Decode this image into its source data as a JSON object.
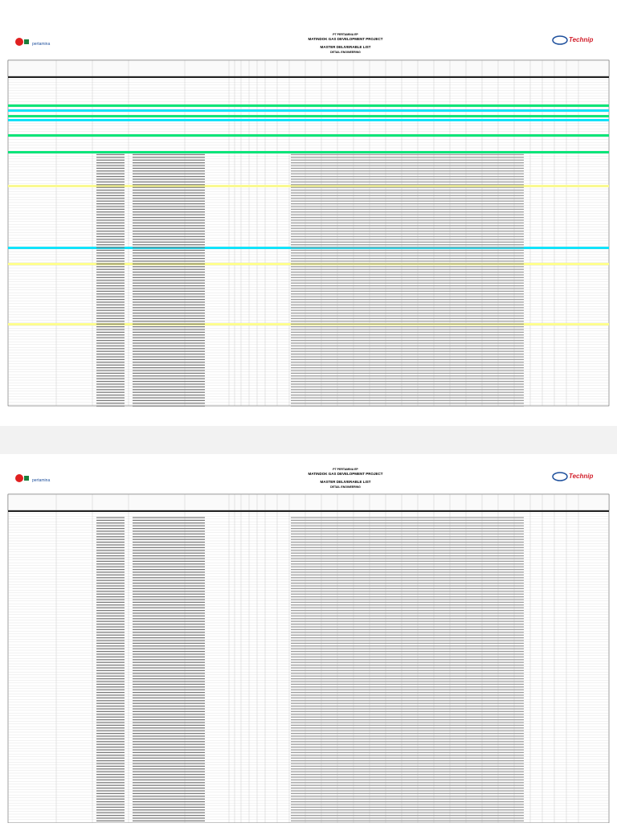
{
  "pages": [
    {
      "header": {
        "title_lines": [
          "PT PERTAMINA EP",
          "MATINDOK GAS DEVELOPMENT PROJECT",
          "MASTER DELIVERABLE LIST",
          "DETAIL ENGINEERING"
        ],
        "left_logo": "pertamina",
        "right_logo": "Technip"
      }
    },
    {
      "header": {
        "title_lines": [
          "PT PERTAMINA EP",
          "MATINDOK GAS DEVELOPMENT PROJECT",
          "MASTER DELIVERABLE LIST",
          "DETAIL ENGINEERING"
        ],
        "left_logo": "pertamina",
        "right_logo": "Technip"
      }
    }
  ]
}
